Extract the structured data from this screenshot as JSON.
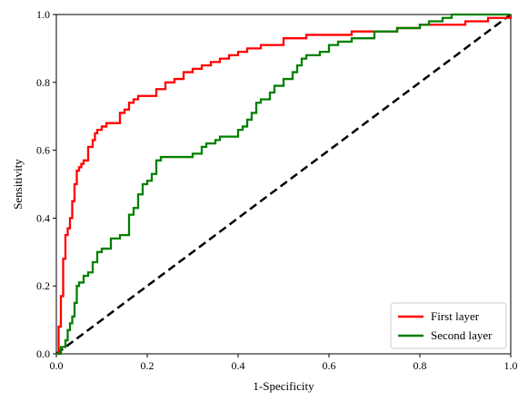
{
  "chart_data": {
    "type": "line",
    "title": "",
    "xlabel": "1-Specificity",
    "ylabel": "Sensitivity",
    "xlim": [
      0.0,
      1.0
    ],
    "ylim": [
      0.0,
      1.0
    ],
    "x_ticks": [
      "0.0",
      "0.2",
      "0.4",
      "0.6",
      "0.8",
      "1.0"
    ],
    "y_ticks": [
      "0.0",
      "0.2",
      "0.4",
      "0.6",
      "0.8",
      "1.0"
    ],
    "grid": false,
    "legend_position": "lower-right",
    "reference_line": {
      "x": [
        0,
        1
      ],
      "y": [
        0,
        1
      ],
      "color": "#000000",
      "style": "dashed"
    },
    "series": [
      {
        "name": "First layer",
        "color": "#ff0000",
        "x": [
          0.0,
          0.005,
          0.01,
          0.015,
          0.02,
          0.025,
          0.03,
          0.035,
          0.04,
          0.045,
          0.05,
          0.055,
          0.06,
          0.07,
          0.08,
          0.085,
          0.09,
          0.1,
          0.11,
          0.12,
          0.14,
          0.15,
          0.16,
          0.17,
          0.18,
          0.2,
          0.22,
          0.24,
          0.26,
          0.28,
          0.3,
          0.32,
          0.34,
          0.36,
          0.38,
          0.4,
          0.42,
          0.45,
          0.5,
          0.55,
          0.6,
          0.65,
          0.7,
          0.75,
          0.8,
          0.85,
          0.9,
          0.95,
          1.0
        ],
        "y": [
          0.0,
          0.08,
          0.17,
          0.28,
          0.35,
          0.37,
          0.4,
          0.45,
          0.5,
          0.54,
          0.55,
          0.56,
          0.57,
          0.61,
          0.63,
          0.65,
          0.66,
          0.67,
          0.68,
          0.68,
          0.71,
          0.72,
          0.74,
          0.75,
          0.76,
          0.76,
          0.78,
          0.8,
          0.81,
          0.83,
          0.84,
          0.85,
          0.86,
          0.87,
          0.88,
          0.89,
          0.9,
          0.91,
          0.93,
          0.94,
          0.94,
          0.95,
          0.95,
          0.96,
          0.97,
          0.97,
          0.98,
          0.99,
          1.0
        ]
      },
      {
        "name": "Second layer",
        "color": "#008000",
        "x": [
          0.0,
          0.01,
          0.02,
          0.025,
          0.03,
          0.035,
          0.04,
          0.045,
          0.05,
          0.06,
          0.07,
          0.08,
          0.09,
          0.1,
          0.12,
          0.13,
          0.14,
          0.16,
          0.17,
          0.18,
          0.19,
          0.2,
          0.21,
          0.22,
          0.23,
          0.25,
          0.28,
          0.3,
          0.32,
          0.33,
          0.35,
          0.36,
          0.38,
          0.4,
          0.41,
          0.42,
          0.43,
          0.44,
          0.45,
          0.47,
          0.48,
          0.5,
          0.52,
          0.53,
          0.54,
          0.55,
          0.56,
          0.58,
          0.6,
          0.62,
          0.65,
          0.7,
          0.75,
          0.8,
          0.82,
          0.85,
          0.87,
          0.9,
          0.95,
          1.0
        ],
        "y": [
          0.0,
          0.02,
          0.04,
          0.07,
          0.09,
          0.11,
          0.15,
          0.2,
          0.21,
          0.23,
          0.24,
          0.27,
          0.3,
          0.31,
          0.34,
          0.34,
          0.35,
          0.41,
          0.43,
          0.47,
          0.5,
          0.51,
          0.53,
          0.57,
          0.58,
          0.58,
          0.58,
          0.59,
          0.61,
          0.62,
          0.63,
          0.64,
          0.64,
          0.66,
          0.67,
          0.69,
          0.71,
          0.74,
          0.75,
          0.77,
          0.79,
          0.81,
          0.83,
          0.85,
          0.87,
          0.88,
          0.88,
          0.89,
          0.91,
          0.92,
          0.93,
          0.95,
          0.96,
          0.97,
          0.98,
          0.99,
          1.0,
          1.0,
          1.0,
          1.0
        ]
      }
    ]
  }
}
